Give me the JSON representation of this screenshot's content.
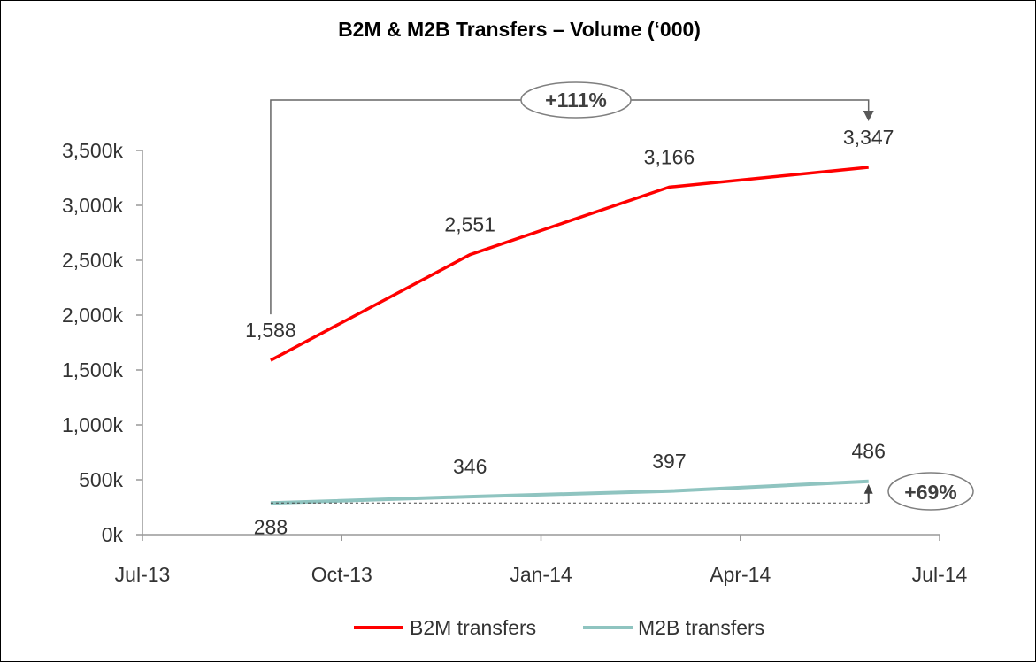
{
  "chart_data": {
    "type": "line",
    "title": "B2M & M2B Transfers – Volume (‘000)",
    "x_ticks": [
      "Jul-13",
      "Oct-13",
      "Jan-14",
      "Apr-14",
      "Jul-14"
    ],
    "x": [
      "Sep-13",
      "Dec-13",
      "Mar-14",
      "Jun-14"
    ],
    "y_ticks": [
      "0k",
      "500k",
      "1,000k",
      "1,500k",
      "2,000k",
      "2,500k",
      "3,000k",
      "3,500k"
    ],
    "ylim": [
      0,
      3500
    ],
    "grid": false,
    "legend_position": "bottom",
    "series": [
      {
        "name": "B2M transfers",
        "color": "#ff0000",
        "values": [
          1588,
          2551,
          3166,
          3347
        ],
        "labels": [
          "1,588",
          "2,551",
          "3,166",
          "3,347"
        ]
      },
      {
        "name": "M2B transfers",
        "color": "#8fc4c0",
        "values": [
          288,
          346,
          397,
          486
        ],
        "labels": [
          "288",
          "346",
          "397",
          "486"
        ]
      }
    ],
    "annotations": [
      {
        "text": "+111%",
        "series": "B2M transfers"
      },
      {
        "text": "+69%",
        "series": "M2B transfers"
      }
    ]
  }
}
